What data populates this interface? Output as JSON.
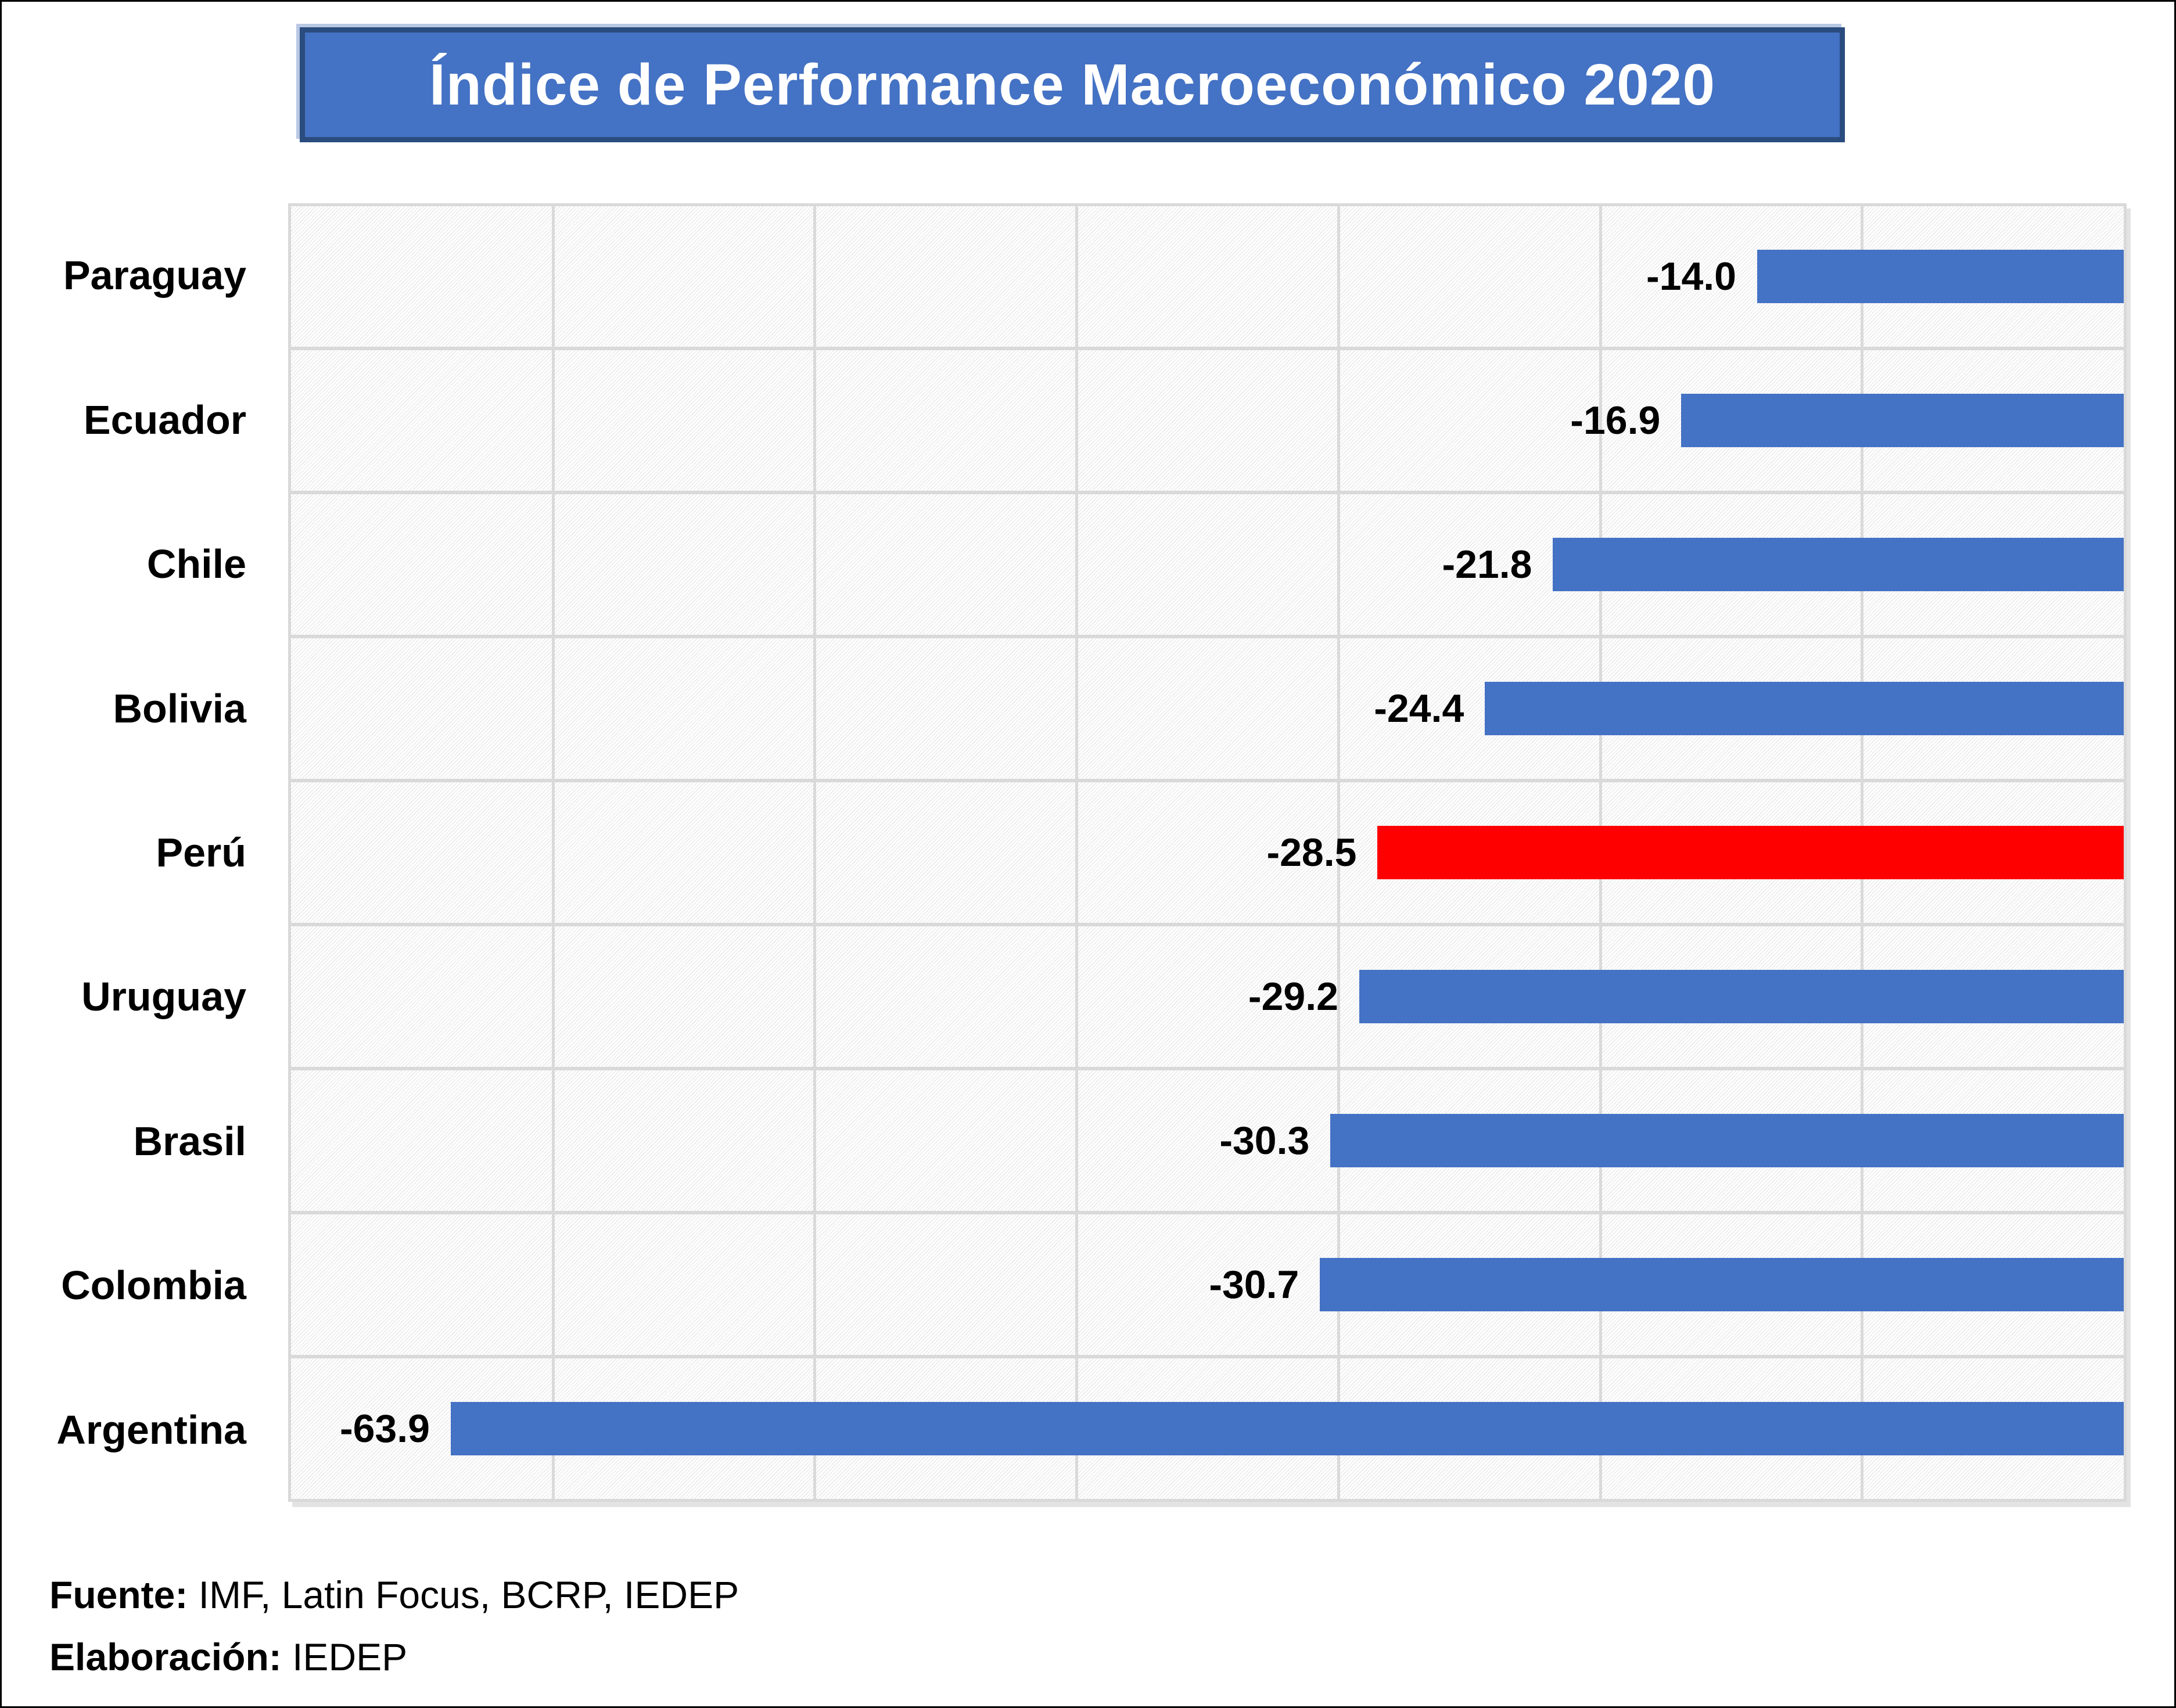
{
  "title": {
    "text": "Índice de Performance Macroeconómico 2020"
  },
  "chart_data": {
    "type": "bar",
    "orientation": "horizontal",
    "title": "Índice de Performance Macroeconómico 2020",
    "categories": [
      "Paraguay",
      "Ecuador",
      "Chile",
      "Bolivia",
      "Perú",
      "Uruguay",
      "Brasil",
      "Colombia",
      "Argentina"
    ],
    "values": [
      -14.0,
      -16.9,
      -21.8,
      -24.4,
      -28.5,
      -29.2,
      -30.3,
      -30.7,
      -63.9
    ],
    "value_labels": [
      "-14.0",
      "-16.9",
      "-21.8",
      "-24.4",
      "-28.5",
      "-29.2",
      "-30.3",
      "-30.7",
      "-63.9"
    ],
    "highlight_category": "Perú",
    "xlim": [
      -70,
      0
    ],
    "gridline_interval": 10,
    "grid_on": true,
    "legend_position": "none",
    "xlabel": "",
    "ylabel": ""
  },
  "footer": {
    "source_label": "Fuente:",
    "source_text": " IMF, Latin Focus, BCRP, IEDEP",
    "elaboration_label": "Elaboración:",
    "elaboration_text": " IEDEP"
  },
  "colors": {
    "bar_blue": "#4472C4",
    "bar_red": "#FF0000",
    "title_bg": "#4472C4",
    "title_border": "#2B4C7E",
    "title_text": "#FFFFFF",
    "grid": "#D9D9D9",
    "plot_bg": "#F3F3F3",
    "text": "#000000"
  }
}
